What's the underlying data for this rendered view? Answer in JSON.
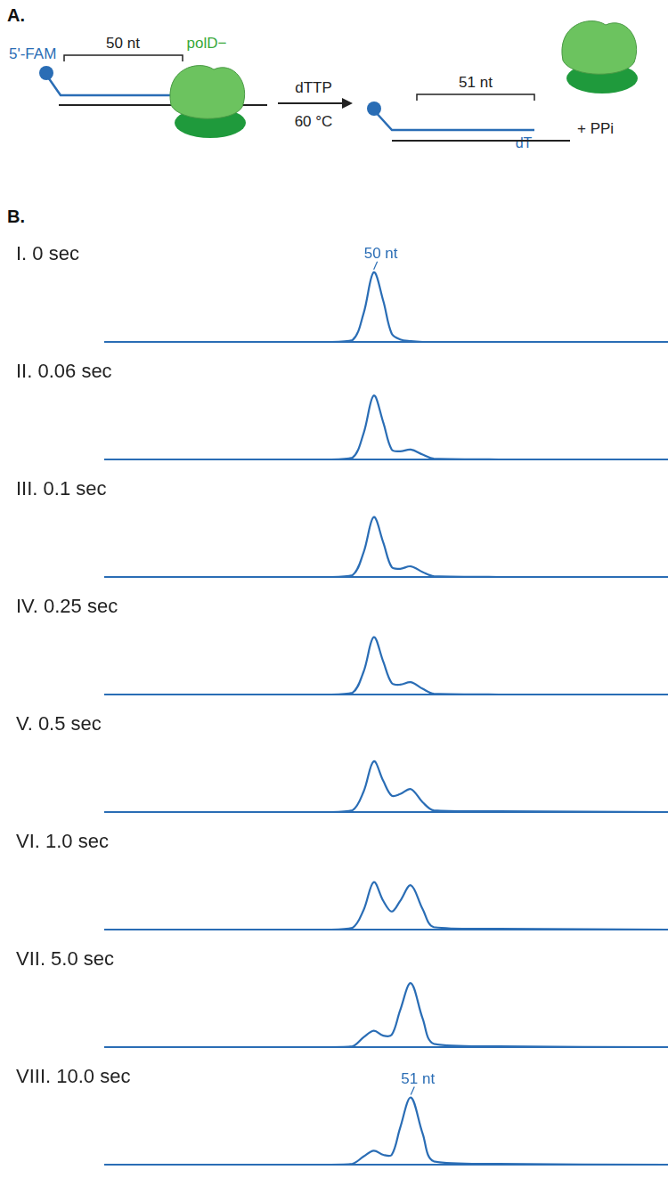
{
  "diagram": {
    "label": "A.",
    "probe": "5'-FAM",
    "primer_length": "50 nt",
    "enzyme": "polD−",
    "reagent": "dTTP",
    "temperature": "60 °C",
    "product_length": "51 nt",
    "added_base": "dT",
    "byproduct": "+ PPi"
  },
  "panel_b_label": "B.",
  "chart_data": [
    {
      "type": "line",
      "title": "I. 0 sec",
      "color": "#2a6db5",
      "grid": false,
      "tick_labels": false,
      "x": [
        0,
        40,
        44,
        46,
        47.8,
        49.5,
        51,
        52.5,
        54.4,
        56.5,
        58.5,
        70,
        100
      ],
      "values": [
        0,
        0,
        2,
        35,
        85,
        50,
        10,
        3,
        1,
        0,
        0,
        0,
        0
      ],
      "xlim": [
        0,
        100
      ],
      "ylim": [
        0,
        100
      ],
      "annotations": [
        {
          "text": "50 nt",
          "x": 47.8,
          "y": 85
        }
      ]
    },
    {
      "type": "line",
      "title": "II. 0.06 sec",
      "color": "#2a6db5",
      "grid": false,
      "tick_labels": false,
      "x": [
        0,
        40,
        44,
        46,
        47.8,
        49.5,
        51,
        52.5,
        54.4,
        56.5,
        58.5,
        70,
        100
      ],
      "values": [
        0,
        0,
        2,
        32,
        78,
        45,
        12,
        10,
        12,
        6,
        1,
        0,
        0
      ],
      "xlim": [
        0,
        100
      ],
      "ylim": [
        0,
        100
      ]
    },
    {
      "type": "line",
      "title": "III. 0.1 sec",
      "color": "#2a6db5",
      "grid": false,
      "tick_labels": false,
      "x": [
        0,
        40,
        44,
        46,
        47.8,
        49.5,
        51,
        52.5,
        54.4,
        56.5,
        58.5,
        70,
        100
      ],
      "values": [
        0,
        0,
        2,
        30,
        73,
        42,
        12,
        10,
        13,
        6,
        1,
        0,
        0
      ],
      "xlim": [
        0,
        100
      ],
      "ylim": [
        0,
        100
      ]
    },
    {
      "type": "line",
      "title": "IV. 0.25 sec",
      "color": "#2a6db5",
      "grid": false,
      "tick_labels": false,
      "x": [
        0,
        40,
        44,
        46,
        47.8,
        49.5,
        51,
        52.5,
        54.4,
        56.5,
        58.5,
        70,
        100
      ],
      "values": [
        0,
        0,
        2,
        28,
        70,
        40,
        14,
        12,
        15,
        7,
        1,
        0,
        0
      ],
      "xlim": [
        0,
        100
      ],
      "ylim": [
        0,
        100
      ]
    },
    {
      "type": "line",
      "title": "V. 0.5 sec",
      "color": "#2a6db5",
      "grid": false,
      "tick_labels": false,
      "x": [
        0,
        40,
        44,
        46,
        47.8,
        49.5,
        51,
        52.5,
        54.4,
        56.5,
        58.5,
        70,
        100
      ],
      "values": [
        0,
        0,
        2,
        25,
        62,
        38,
        20,
        22,
        28,
        12,
        2,
        1,
        0
      ],
      "xlim": [
        0,
        100
      ],
      "ylim": [
        0,
        100
      ]
    },
    {
      "type": "line",
      "title": "VI. 1.0 sec",
      "color": "#2a6db5",
      "grid": false,
      "tick_labels": false,
      "x": [
        0,
        40,
        44,
        46,
        47.8,
        49.5,
        51,
        52.5,
        54.4,
        56.5,
        58.5,
        70,
        100
      ],
      "values": [
        0,
        0,
        2,
        24,
        58,
        35,
        22,
        35,
        54,
        25,
        3,
        1,
        0
      ],
      "xlim": [
        0,
        100
      ],
      "ylim": [
        0,
        100
      ]
    },
    {
      "type": "line",
      "title": "VII. 5.0 sec",
      "color": "#2a6db5",
      "grid": false,
      "tick_labels": false,
      "x": [
        0,
        40,
        44,
        46,
        47.8,
        49.5,
        51,
        52.5,
        54.4,
        56.5,
        58.5,
        70,
        100
      ],
      "values": [
        0,
        0,
        1,
        12,
        20,
        14,
        15,
        45,
        78,
        35,
        4,
        1,
        0
      ],
      "xlim": [
        0,
        100
      ],
      "ylim": [
        0,
        100
      ]
    },
    {
      "type": "line",
      "title": "VIII. 10.0 sec",
      "color": "#2a6db5",
      "grid": false,
      "tick_labels": false,
      "x": [
        0,
        40,
        44,
        46,
        47.8,
        49.5,
        51,
        52.5,
        54.4,
        56.5,
        58.5,
        70,
        100
      ],
      "values": [
        0,
        0,
        1,
        10,
        17,
        12,
        12,
        45,
        82,
        38,
        4,
        1,
        0
      ],
      "xlim": [
        0,
        100
      ],
      "ylim": [
        0,
        100
      ],
      "annotations": [
        {
          "text": "51 nt",
          "x": 54.4,
          "y": 82
        }
      ]
    }
  ]
}
